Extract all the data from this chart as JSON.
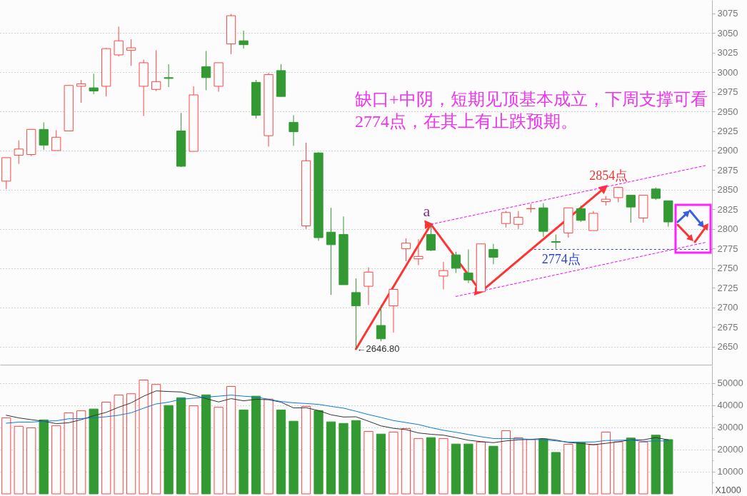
{
  "chart_data": [
    {
      "type": "candlestick",
      "categories": [
        null,
        null,
        null,
        null,
        null,
        null,
        null,
        null,
        null,
        null,
        null,
        null,
        null,
        null,
        null,
        null,
        null,
        null,
        null,
        null,
        null,
        null,
        null,
        null,
        null,
        null,
        null,
        null,
        null,
        null,
        null,
        null,
        null,
        null,
        null,
        null,
        null,
        null,
        null,
        null,
        null,
        null,
        null,
        null,
        null,
        null,
        null,
        null,
        null,
        null,
        null,
        null,
        null,
        null,
        null,
        null,
        null
      ],
      "ohlc": [
        [
          2861,
          2891,
          2851,
          2891
        ],
        [
          2894,
          2913,
          2883,
          2902
        ],
        [
          2895,
          2927,
          2893,
          2927
        ],
        [
          2927,
          2936,
          2901,
          2907
        ],
        [
          2900,
          2926,
          2900,
          2917
        ],
        [
          2925,
          2983,
          2925,
          2983
        ],
        [
          2982,
          2990,
          2961,
          2985
        ],
        [
          2980,
          2998,
          2972,
          2976
        ],
        [
          2982,
          3031,
          2969,
          3030
        ],
        [
          3022,
          3058,
          3020,
          3040
        ],
        [
          3028,
          3042,
          3008,
          3031
        ],
        [
          2982,
          3016,
          2944,
          3012
        ],
        [
          2978,
          3028,
          2976,
          2988
        ],
        [
          2993,
          3010,
          2981,
          2992
        ],
        [
          2925,
          2948,
          2879,
          2880
        ],
        [
          2899,
          2982,
          2899,
          2971
        ],
        [
          3007,
          3027,
          2977,
          2993
        ],
        [
          2982,
          3012,
          2975,
          3012
        ],
        [
          3036,
          3074,
          3023,
          3072
        ],
        [
          3040,
          3053,
          3030,
          3035
        ],
        [
          2987,
          2990,
          2941,
          2945
        ],
        [
          2919,
          2999,
          2905,
          2997
        ],
        [
          3002,
          3010,
          2969,
          2969
        ],
        [
          2936,
          2945,
          2906,
          2924
        ],
        [
          2804,
          2910,
          2800,
          2887
        ],
        [
          2897,
          2898,
          2785,
          2789
        ],
        [
          2796,
          2827,
          2716,
          2780
        ],
        [
          2793,
          2816,
          2729,
          2729
        ],
        [
          2719,
          2737,
          2646.8,
          2702
        ],
        [
          2727,
          2751,
          2703,
          2745
        ],
        [
          2677,
          2703,
          2657,
          2660
        ],
        [
          2702,
          2723,
          2668,
          2723
        ],
        [
          2775,
          2788,
          2759,
          2782
        ],
        [
          2762,
          2787,
          2754,
          2765
        ],
        [
          2793,
          2806,
          2772,
          2773
        ],
        [
          2740,
          2758,
          2723,
          2747
        ],
        [
          2767,
          2771,
          2744,
          2750
        ],
        [
          2744,
          2774,
          2731,
          2735
        ],
        [
          2720,
          2781,
          2720,
          2781
        ],
        [
          2774,
          2781,
          2755,
          2764
        ],
        [
          2807,
          2823,
          2802,
          2821
        ],
        [
          2806,
          2823,
          2800,
          2815
        ],
        [
          2826,
          2832,
          2821,
          2826
        ],
        [
          2827,
          2833,
          2790,
          2797
        ],
        [
          2784,
          2793,
          2775,
          2783
        ],
        [
          2795,
          2827,
          2789,
          2827
        ],
        [
          2826,
          2830,
          2809,
          2811
        ],
        [
          2798,
          2823,
          2798,
          2820
        ],
        [
          2835,
          2842,
          2830,
          2838
        ],
        [
          2840,
          2854,
          2834,
          2853
        ],
        [
          2843,
          2843,
          2808,
          2828
        ],
        [
          2814,
          2843,
          2808,
          2843
        ],
        [
          2851,
          2853,
          2837,
          2839
        ],
        [
          2836,
          2836,
          2803,
          2809
        ],
        null,
        null,
        null
      ],
      "colors": [
        "#ff4444",
        "#ff4444",
        "#ff4444",
        "#339933",
        "#ff4444",
        "#ff4444",
        "#ff4444",
        "#339933",
        "#ff4444",
        "#ff4444",
        "#ff4444",
        "#ff4444",
        "#ff4444",
        "#339933",
        "#339933",
        "#ff4444",
        "#339933",
        "#ff4444",
        "#ff4444",
        "#339933",
        "#339933",
        "#ff4444",
        "#339933",
        "#339933",
        "#ff4444",
        "#339933",
        "#339933",
        "#339933",
        "#339933",
        "#ff4444",
        "#339933",
        "#ff4444",
        "#ff4444",
        "#ff4444",
        "#339933",
        "#ff4444",
        "#339933",
        "#339933",
        "#ff4444",
        "#339933",
        "#ff4444",
        "#ff4444",
        "#ff4444",
        "#339933",
        "#339933",
        "#ff4444",
        "#339933",
        "#ff4444",
        "#ff4444",
        "#ff4444",
        "#339933",
        "#ff4444",
        "#339933",
        "#339933",
        null,
        null,
        null
      ],
      "series": [
        {
          "type": "line",
          "color": "#ff3333",
          "values": [
            null,
            null,
            null,
            null,
            null,
            null,
            null,
            null,
            null,
            null,
            null,
            null,
            null,
            null,
            null,
            null,
            null,
            null,
            null,
            null,
            null,
            null,
            null,
            null,
            null,
            null,
            null,
            null,
            2647,
            null,
            null,
            null,
            null,
            null,
            2806,
            null,
            null,
            null,
            2720,
            null,
            null,
            null,
            null,
            null,
            null,
            null,
            null,
            null,
            2854,
            null,
            null,
            null,
            null,
            null,
            null,
            null,
            null
          ]
        },
        {
          "type": "line",
          "color": "#ff00ff",
          "line_style": "dashed",
          "values": [
            null,
            null,
            null,
            null,
            null,
            null,
            null,
            null,
            null,
            null,
            null,
            null,
            null,
            null,
            null,
            null,
            null,
            null,
            null,
            null,
            null,
            null,
            null,
            null,
            null,
            null,
            null,
            null,
            null,
            null,
            null,
            null,
            null,
            null,
            2806,
            null,
            null,
            null,
            null,
            null,
            null,
            null,
            null,
            null,
            null,
            null,
            null,
            null,
            null,
            null,
            null,
            null,
            null,
            null,
            null,
            null,
            2881
          ]
        },
        {
          "type": "line",
          "color": "#ff00ff",
          "line_style": "dashed",
          "values": [
            null,
            null,
            null,
            null,
            null,
            null,
            null,
            null,
            null,
            null,
            null,
            null,
            null,
            null,
            null,
            null,
            null,
            null,
            null,
            null,
            null,
            null,
            null,
            null,
            null,
            null,
            null,
            null,
            null,
            null,
            null,
            null,
            null,
            null,
            null,
            null,
            2714,
            null,
            null,
            null,
            null,
            null,
            null,
            null,
            null,
            null,
            null,
            null,
            null,
            null,
            null,
            null,
            null,
            null,
            null,
            null,
            2783
          ]
        }
      ],
      "ylim": [
        2627,
        3092
      ],
      "yticks": [
        2650,
        2675,
        2700,
        2725,
        2750,
        2775,
        2800,
        2825,
        2850,
        2875,
        2900,
        2925,
        2950,
        2975,
        3000,
        3025,
        3050,
        3075
      ],
      "grid": "y",
      "tick_labels": "y",
      "ref_lines": [
        {
          "axis": "y",
          "value": 2774,
          "label": "2774点",
          "color": "#2a3fd0",
          "line_style": "dashed"
        }
      ],
      "annotations": [
        "缺口+中阴，短期见顶基本成立，下周支撑可看2774点，在其上有止跌预期。",
        {
          "text": "a",
          "y": 2806
        },
        {
          "text": "2854点",
          "y": 2854
        },
        "←2646.80"
      ]
    },
    {
      "type": "bar",
      "categories": [
        null,
        null,
        null,
        null,
        null,
        null,
        null,
        null,
        null,
        null,
        null,
        null,
        null,
        null,
        null,
        null,
        null,
        null,
        null,
        null,
        null,
        null,
        null,
        null,
        null,
        null,
        null,
        null,
        null,
        null,
        null,
        null,
        null,
        null,
        null,
        null,
        null,
        null,
        null,
        null,
        null,
        null,
        null,
        null,
        null,
        null,
        null,
        null,
        null,
        null,
        null,
        null,
        null,
        null,
        null,
        null,
        null
      ],
      "values": [
        34300,
        30500,
        29800,
        33400,
        30800,
        36600,
        37500,
        38300,
        41400,
        44600,
        45200,
        51400,
        49400,
        39900,
        43400,
        39800,
        44700,
        39100,
        48500,
        37900,
        44100,
        42800,
        37900,
        32800,
        39500,
        37600,
        32500,
        31800,
        33100,
        28200,
        27000,
        27900,
        29500,
        25000,
        25400,
        25000,
        22500,
        22500,
        23400,
        21500,
        28500,
        25300,
        24500,
        24700,
        18700,
        22400,
        23100,
        22200,
        27900,
        23500,
        25200,
        23400,
        26500,
        24500,
        null,
        null,
        null
      ],
      "colors": [
        "#ff4444",
        "#ff4444",
        "#ff4444",
        "#339933",
        "#ff4444",
        "#ff4444",
        "#ff4444",
        "#339933",
        "#ff4444",
        "#ff4444",
        "#ff4444",
        "#ff4444",
        "#ff4444",
        "#339933",
        "#339933",
        "#ff4444",
        "#339933",
        "#ff4444",
        "#ff4444",
        "#339933",
        "#339933",
        "#ff4444",
        "#339933",
        "#339933",
        "#ff4444",
        "#339933",
        "#339933",
        "#339933",
        "#339933",
        "#ff4444",
        "#339933",
        "#ff4444",
        "#ff4444",
        "#ff4444",
        "#339933",
        "#ff4444",
        "#339933",
        "#339933",
        "#ff4444",
        "#339933",
        "#ff4444",
        "#ff4444",
        "#ff4444",
        "#339933",
        "#339933",
        "#ff4444",
        "#339933",
        "#ff4444",
        "#ff4444",
        "#ff4444",
        "#339933",
        "#ff4444",
        "#339933",
        "#339933",
        null,
        null,
        null
      ],
      "series": [
        {
          "type": "line",
          "color": "#333333",
          "values": [
            35500,
            34300,
            33500,
            32800,
            31700,
            32100,
            33500,
            35300,
            36800,
            39100,
            41100,
            44100,
            46500,
            46200,
            46000,
            44600,
            43000,
            41500,
            43000,
            42000,
            42700,
            42500,
            41400,
            38800,
            38900,
            37600,
            35700,
            34700,
            34800,
            32800,
            30700,
            29600,
            29000,
            27500,
            26900,
            26500,
            25400,
            24200,
            23600,
            23100,
            23900,
            24400,
            24600,
            25000,
            24300,
            23200,
            22800,
            22200,
            22800,
            23500,
            24400,
            24400,
            25400,
            24400,
            null,
            null,
            null
          ]
        },
        {
          "type": "line",
          "color": "#0a7ad8",
          "values": [
            31900,
            32400,
            32400,
            32800,
            33000,
            33900,
            34000,
            34400,
            34800,
            35500,
            36600,
            38700,
            40600,
            41400,
            42700,
            43200,
            43700,
            44100,
            44600,
            44100,
            43700,
            42700,
            41700,
            41100,
            40800,
            40400,
            39500,
            38700,
            37300,
            35800,
            34500,
            33100,
            32200,
            31300,
            29900,
            28700,
            27800,
            26800,
            25800,
            25000,
            25000,
            24900,
            24600,
            24400,
            23900,
            23400,
            23400,
            23400,
            24100,
            24200,
            24300,
            23700,
            23900,
            23900,
            null,
            null,
            null
          ]
        }
      ],
      "ylim": [
        0,
        58000
      ],
      "yticks": [
        {
          "value": 5000,
          "label": null
        },
        10000,
        {
          "value": 15000,
          "label": null
        },
        20000,
        {
          "value": 25000,
          "label": null
        },
        30000,
        {
          "value": 35000,
          "label": null
        },
        40000,
        {
          "value": 45000,
          "label": null
        },
        50000
      ],
      "grid": "y",
      "tick_labels": "y",
      "ylabel": "X1000"
    }
  ]
}
